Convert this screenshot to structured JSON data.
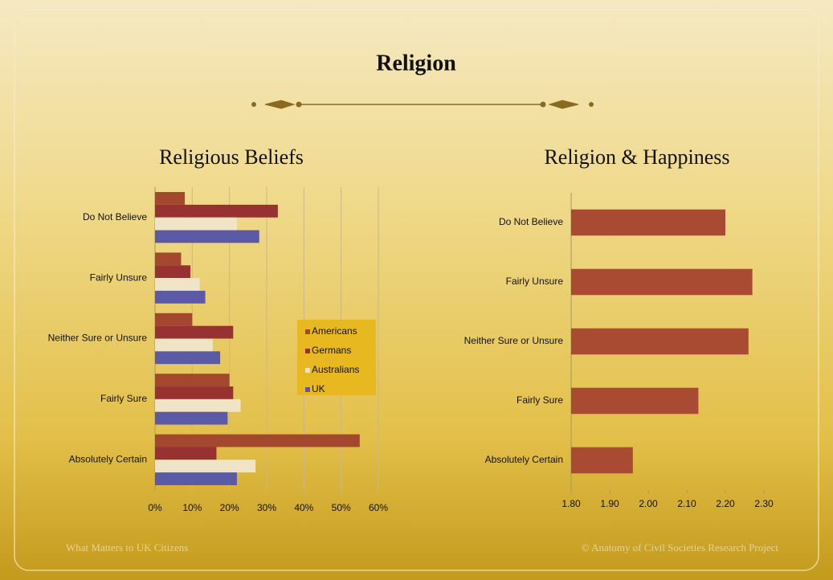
{
  "header": {
    "title": "Religion"
  },
  "footer": {
    "left": "What Matters to UK Citizens",
    "right": "© Anatomy of Civil Societies Research Project"
  },
  "chart_data": [
    {
      "type": "bar",
      "orientation": "horizontal",
      "title": "Religious Beliefs",
      "categories": [
        "Do Not Believe",
        "Fairly Unsure",
        "Neither Sure or Unsure",
        "Fairly Sure",
        "Absolutely Certain"
      ],
      "series": [
        {
          "name": "Americans",
          "color": "#a3482f",
          "values": [
            8,
            7,
            10,
            20,
            55
          ]
        },
        {
          "name": "Germans",
          "color": "#983232",
          "values": [
            33,
            9.5,
            21,
            21,
            16.5
          ]
        },
        {
          "name": "Australians",
          "color": "#efe5c6",
          "values": [
            22,
            12,
            15.5,
            23,
            27
          ]
        },
        {
          "name": "UK",
          "color": "#5b5aa6",
          "values": [
            28,
            13.5,
            17.5,
            19.5,
            22
          ]
        }
      ],
      "xlim": [
        0,
        60
      ],
      "xticks": [
        {
          "value": 0,
          "label": "0%"
        },
        {
          "value": 10,
          "label": "10%"
        },
        {
          "value": 20,
          "label": "20%"
        },
        {
          "value": 30,
          "label": "30%"
        },
        {
          "value": 40,
          "label": "40%"
        },
        {
          "value": 50,
          "label": "50%"
        },
        {
          "value": 60,
          "label": "60%"
        }
      ],
      "grid": true,
      "legend": "right"
    },
    {
      "type": "bar",
      "orientation": "horizontal",
      "title": "Religion & Happiness",
      "categories": [
        "Do Not Believe",
        "Fairly Unsure",
        "Neither Sure or Unsure",
        "Fairly Sure",
        "Absolutely Certain"
      ],
      "values": [
        2.2,
        2.27,
        2.26,
        2.13,
        1.96
      ],
      "color": "#a94a33",
      "xlim": [
        1.8,
        2.3
      ],
      "xticks": [
        {
          "value": 1.8,
          "label": "1.80"
        },
        {
          "value": 1.9,
          "label": "1.90"
        },
        {
          "value": 2.0,
          "label": "2.00"
        },
        {
          "value": 2.1,
          "label": "2.10"
        },
        {
          "value": 2.2,
          "label": "2.20"
        },
        {
          "value": 2.3,
          "label": "2.30"
        }
      ],
      "grid": false
    }
  ]
}
